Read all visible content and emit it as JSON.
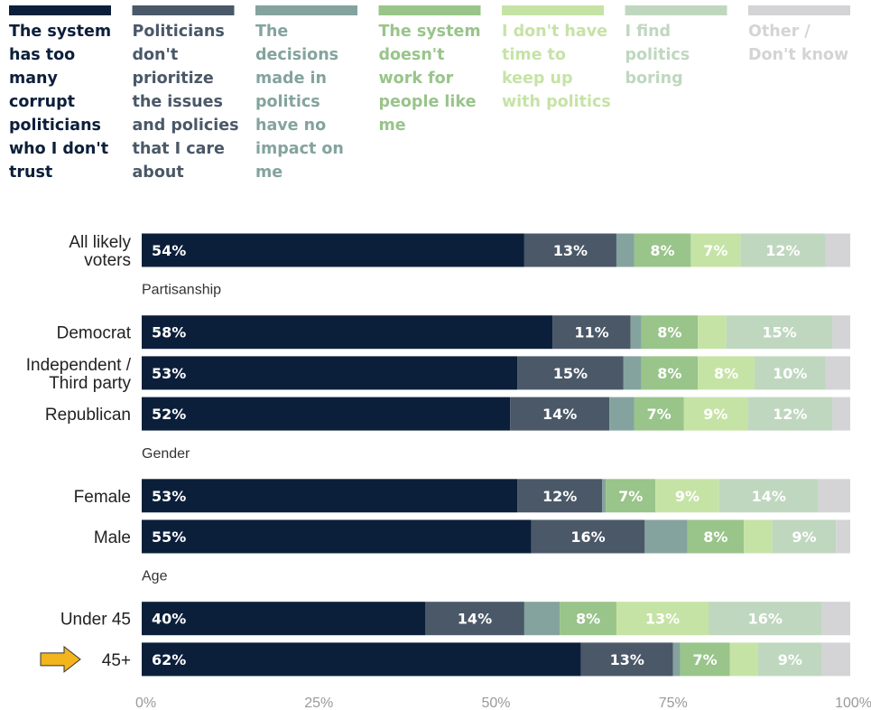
{
  "chart_data": {
    "type": "bar",
    "orientation": "horizontal",
    "stacked": true,
    "xlim": [
      0,
      100
    ],
    "x_ticks": [
      "0%",
      "25%",
      "50%",
      "75%",
      "100%"
    ],
    "legend_position": "top",
    "series": [
      {
        "name": "The system has too many corrupt politicians who I don't trust",
        "color": "#0b1f3a",
        "label_color": "#ffffff",
        "legend_lines": [
          "The system",
          "has too",
          "many",
          "corrupt",
          "politicians",
          "who I don't",
          "trust"
        ]
      },
      {
        "name": "Politicians don't prioritize the issues and policies that I care about",
        "color": "#4a5868",
        "label_color": "#ffffff",
        "legend_lines": [
          "Politicians",
          "don't",
          "prioritize",
          "the issues",
          "and policies",
          "that I care",
          "about"
        ]
      },
      {
        "name": "The decisions made in politics have no impact on me",
        "color": "#84a39e",
        "label_color": "#ffffff",
        "legend_lines": [
          "The",
          "decisions",
          "made in",
          "politics",
          "have no",
          "impact on",
          "me"
        ]
      },
      {
        "name": "The system doesn't work for people like me",
        "color": "#99c48a",
        "label_color": "#ffffff",
        "legend_lines": [
          "The system",
          "doesn't",
          "work for",
          "people like",
          "me"
        ]
      },
      {
        "name": "I don't have time to keep up with politics",
        "color": "#c6e3a6",
        "label_color": "#ffffff",
        "legend_lines": [
          "I don't have",
          "time to",
          "keep up",
          "with politics"
        ]
      },
      {
        "name": "I find politics boring",
        "color": "#bfd7bf",
        "label_color": "#ffffff",
        "legend_lines": [
          "I find",
          "politics",
          "boring"
        ]
      },
      {
        "name": "Other / Don't know",
        "color": "#d4d4d6",
        "label_color": "#ffffff",
        "legend_lines": [
          "Other /",
          "Don't know"
        ]
      }
    ],
    "groups": [
      {
        "label": "",
        "rows": [
          {
            "lines": [
              "All likely",
              "voters"
            ],
            "values": [
              54,
              13,
              2.5,
              8,
              7,
              12,
              3.5
            ],
            "labels": [
              "54%",
              "13%",
              "",
              "8%",
              "7%",
              "12%",
              ""
            ]
          }
        ]
      },
      {
        "label": "Partisanship",
        "rows": [
          {
            "lines": [
              "Democrat"
            ],
            "values": [
              58,
              11,
              1.5,
              8,
              4,
              15,
              2.5
            ],
            "labels": [
              "58%",
              "11%",
              "",
              "8%",
              "",
              "15%",
              ""
            ]
          },
          {
            "lines": [
              "Independent /",
              "Third party"
            ],
            "values": [
              53,
              15,
              2.5,
              8,
              8,
              10,
              3.5
            ],
            "labels": [
              "53%",
              "15%",
              "",
              "8%",
              "8%",
              "10%",
              ""
            ]
          },
          {
            "lines": [
              "Republican"
            ],
            "values": [
              52,
              14,
              3.5,
              7,
              9,
              12,
              2.5
            ],
            "labels": [
              "52%",
              "14%",
              "",
              "7%",
              "9%",
              "12%",
              ""
            ]
          }
        ]
      },
      {
        "label": "Gender",
        "rows": [
          {
            "lines": [
              "Female"
            ],
            "values": [
              53,
              12,
              0.5,
              7,
              9,
              14,
              4.5
            ],
            "labels": [
              "53%",
              "12%",
              "",
              "7%",
              "9%",
              "14%",
              ""
            ]
          },
          {
            "lines": [
              "Male"
            ],
            "values": [
              55,
              16,
              6,
              8,
              4,
              9,
              2
            ],
            "labels": [
              "55%",
              "16%",
              "",
              "8%",
              "",
              "9%",
              ""
            ]
          }
        ]
      },
      {
        "label": "Age",
        "rows": [
          {
            "lines": [
              "Under 45"
            ],
            "values": [
              40,
              14,
              5,
              8,
              13,
              16,
              4
            ],
            "labels": [
              "40%",
              "14%",
              "",
              "8%",
              "13%",
              "16%",
              ""
            ]
          },
          {
            "lines": [
              "45+"
            ],
            "values": [
              62,
              13,
              1,
              7,
              4,
              9,
              4
            ],
            "labels": [
              "62%",
              "13%",
              "",
              "7%",
              "",
              "9%",
              ""
            ],
            "highlight_arrow": true,
            "arrow_color": "#f2b51d"
          }
        ]
      }
    ]
  }
}
